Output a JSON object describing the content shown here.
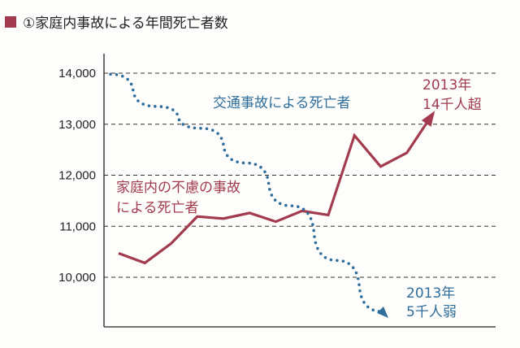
{
  "chart_data": {
    "type": "line",
    "title": "①家庭内事故による年間死亡者数",
    "xlabel": "",
    "ylabel": "",
    "ylim": [
      9200,
      14000
    ],
    "yticks": [
      "14,000",
      "13,000",
      "12,000",
      "11,000",
      "10,000"
    ],
    "ytick_values": [
      14000,
      13000,
      12000,
      11000,
      10000
    ],
    "grid": true,
    "series": [
      {
        "name": "家庭内の不慮の事故による死亡者",
        "style": "solid",
        "color": "#a23b4e",
        "values": [
          10470,
          10280,
          10660,
          11190,
          11150,
          11260,
          11090,
          11300,
          11220,
          12780,
          12170,
          12440,
          13210
        ]
      },
      {
        "name": "交通事故による死亡者",
        "style": "dotted",
        "color": "#2f6e9c",
        "values": [
          13980,
          13350,
          12920,
          12240,
          11400,
          10330,
          9330
        ]
      }
    ],
    "annotations": {
      "home_label_1": "家庭内の不慮の事故",
      "home_label_2": "による死亡者",
      "traffic_label": "交通事故による死亡者",
      "home_end_1": "2013年",
      "home_end_2": "14千人超",
      "traffic_end_1": "2013年",
      "traffic_end_2": "5千人弱"
    }
  }
}
